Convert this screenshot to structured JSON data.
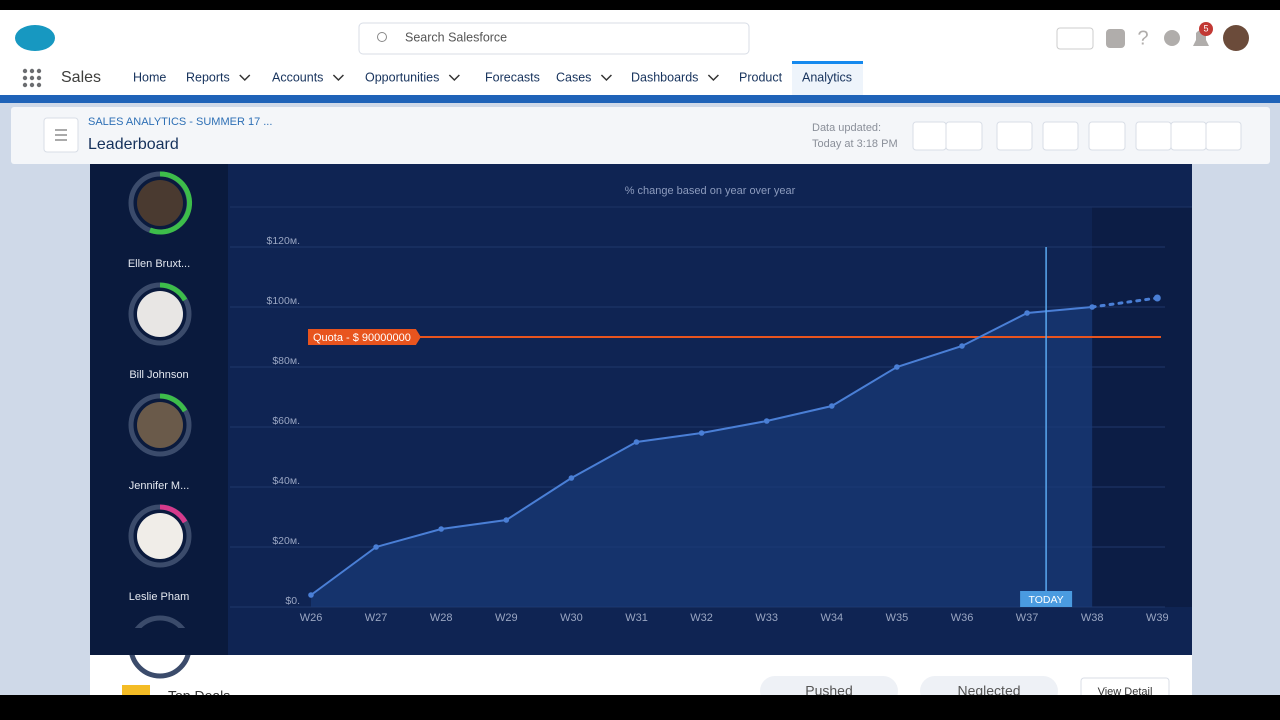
{
  "app": {
    "search_placeholder": "Search Salesforce",
    "app_name": "Sales",
    "notification_count": "5",
    "nav": [
      {
        "label": "Home",
        "dropdown": false
      },
      {
        "label": "Reports",
        "dropdown": true
      },
      {
        "label": "Accounts",
        "dropdown": true
      },
      {
        "label": "Opportunities",
        "dropdown": true
      },
      {
        "label": "Forecasts",
        "dropdown": false
      },
      {
        "label": "Cases",
        "dropdown": true
      },
      {
        "label": "Dashboards",
        "dropdown": true
      },
      {
        "label": "Product",
        "dropdown": false
      },
      {
        "label": "Analytics",
        "dropdown": false,
        "active": true
      }
    ]
  },
  "page_header": {
    "breadcrumb": "SALES ANALYTICS - SUMMER 17 ...",
    "title": "Leaderboard",
    "updated_label": "Data updated:",
    "updated_time": "Today at 3:18 PM"
  },
  "leaderboard": [
    "Ellen Bruxt...",
    "Bill Johnson",
    "Jennifer M...",
    "Leslie Pham"
  ],
  "bottom": {
    "title": "Top Deals",
    "tabs": [
      "Pushed",
      "Neglected"
    ],
    "button": "View Detail"
  },
  "chart_data": {
    "type": "line",
    "subtitle": "% change based on year over year",
    "categories": [
      "W26",
      "W27",
      "W28",
      "W29",
      "W30",
      "W31",
      "W32",
      "W33",
      "W34",
      "W35",
      "W36",
      "W37",
      "W38",
      "W39"
    ],
    "values": [
      4000000,
      20000000,
      26000000,
      29000000,
      43000000,
      55000000,
      58000000,
      62000000,
      67000000,
      80000000,
      87000000,
      98000000,
      100000000,
      103000000
    ],
    "color": "#4a7fd6",
    "forecast_from": "W38",
    "ylim": [
      0,
      120000000
    ],
    "yticks": [
      {
        "value": 0,
        "label": "$0."
      },
      {
        "value": 20000000,
        "label": "$20м."
      },
      {
        "value": 40000000,
        "label": "$40м."
      },
      {
        "value": 60000000,
        "label": "$60м."
      },
      {
        "value": 80000000,
        "label": "$80м."
      },
      {
        "value": 100000000,
        "label": "$100м."
      },
      {
        "value": 120000000,
        "label": "$120м."
      }
    ],
    "grid": true,
    "quota": {
      "label": "Quota - $ 90000000",
      "value": 90000000,
      "color": "#e8541e"
    },
    "today": {
      "label": "TODAY",
      "x": "W37"
    }
  }
}
